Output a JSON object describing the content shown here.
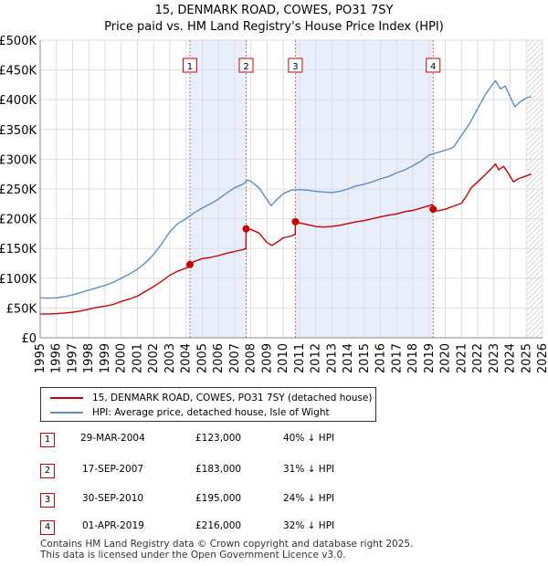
{
  "header": {
    "title": "15, DENMARK ROAD, COWES, PO31 7SY",
    "subtitle": "Price paid vs. HM Land Registry's House Price Index (HPI)"
  },
  "chart_data": {
    "type": "line",
    "title": "15, DENMARK ROAD, COWES, PO31 7SY",
    "subtitle": "Price paid vs. HM Land Registry's House Price Index (HPI)",
    "xlabel": "",
    "ylabel": "",
    "xlim": [
      1995,
      2026
    ],
    "ylim": [
      0,
      500000
    ],
    "grid": true,
    "x_ticks": [
      "1995",
      "1996",
      "1997",
      "1998",
      "1999",
      "2000",
      "2001",
      "2002",
      "2003",
      "2004",
      "2005",
      "2006",
      "2007",
      "2008",
      "2009",
      "2010",
      "2011",
      "2012",
      "2013",
      "2014",
      "2015",
      "2016",
      "2017",
      "2018",
      "2019",
      "2020",
      "2021",
      "2022",
      "2023",
      "2024",
      "2025",
      "2026"
    ],
    "y_ticks": [
      {
        "value": 0,
        "label": "£0"
      },
      {
        "value": 50000,
        "label": "£50K"
      },
      {
        "value": 100000,
        "label": "£100K"
      },
      {
        "value": 150000,
        "label": "£150K"
      },
      {
        "value": 200000,
        "label": "£200K"
      },
      {
        "value": 250000,
        "label": "£250K"
      },
      {
        "value": 300000,
        "label": "£300K"
      },
      {
        "value": 350000,
        "label": "£350K"
      },
      {
        "value": 400000,
        "label": "£400K"
      },
      {
        "value": 450000,
        "label": "£450K"
      },
      {
        "value": 500000,
        "label": "£500K"
      }
    ],
    "shaded_periods": [
      [
        2004.24,
        2007.71
      ],
      [
        2010.75,
        2019.25
      ]
    ],
    "forecast_start": 2025.05,
    "series": [
      {
        "name": "15, DENMARK ROAD, COWES, PO31 7SY (detached house)",
        "color": "#cc0000",
        "points": [
          [
            1995.0,
            40000
          ],
          [
            1995.5,
            40000
          ],
          [
            1996.0,
            40500
          ],
          [
            1996.5,
            41500
          ],
          [
            1997.0,
            43000
          ],
          [
            1997.5,
            45000
          ],
          [
            1998.0,
            48000
          ],
          [
            1998.5,
            51000
          ],
          [
            1999.0,
            53000
          ],
          [
            1999.5,
            56000
          ],
          [
            2000.0,
            61000
          ],
          [
            2000.5,
            65000
          ],
          [
            2001.0,
            70000
          ],
          [
            2001.5,
            78000
          ],
          [
            2002.0,
            86000
          ],
          [
            2002.5,
            95000
          ],
          [
            2003.0,
            105000
          ],
          [
            2003.5,
            112000
          ],
          [
            2003.9,
            116000
          ],
          [
            2004.2,
            119000
          ],
          [
            2004.24,
            123000
          ],
          [
            2004.5,
            128000
          ],
          [
            2005.0,
            133000
          ],
          [
            2005.5,
            135000
          ],
          [
            2006.0,
            138000
          ],
          [
            2006.5,
            142000
          ],
          [
            2007.0,
            145000
          ],
          [
            2007.5,
            148000
          ],
          [
            2007.7,
            150000
          ],
          [
            2007.71,
            183000
          ],
          [
            2008.0,
            182000
          ],
          [
            2008.5,
            176000
          ],
          [
            2009.0,
            160000
          ],
          [
            2009.3,
            155000
          ],
          [
            2009.7,
            162000
          ],
          [
            2010.0,
            168000
          ],
          [
            2010.5,
            171000
          ],
          [
            2010.74,
            174000
          ],
          [
            2010.75,
            195000
          ],
          [
            2011.0,
            193000
          ],
          [
            2011.5,
            190000
          ],
          [
            2012.0,
            187000
          ],
          [
            2012.5,
            186000
          ],
          [
            2013.0,
            187000
          ],
          [
            2013.5,
            189000
          ],
          [
            2014.0,
            192000
          ],
          [
            2014.5,
            195000
          ],
          [
            2015.0,
            197000
          ],
          [
            2015.5,
            200000
          ],
          [
            2016.0,
            203000
          ],
          [
            2016.5,
            206000
          ],
          [
            2017.0,
            208000
          ],
          [
            2017.5,
            212000
          ],
          [
            2018.0,
            214000
          ],
          [
            2018.5,
            218000
          ],
          [
            2019.0,
            222000
          ],
          [
            2019.2,
            224000
          ],
          [
            2019.24,
            216000
          ],
          [
            2019.5,
            213000
          ],
          [
            2020.0,
            216000
          ],
          [
            2020.5,
            221000
          ],
          [
            2021.0,
            226000
          ],
          [
            2021.3,
            238000
          ],
          [
            2021.6,
            252000
          ],
          [
            2022.0,
            262000
          ],
          [
            2022.5,
            275000
          ],
          [
            2022.9,
            286000
          ],
          [
            2023.1,
            292000
          ],
          [
            2023.3,
            282000
          ],
          [
            2023.6,
            288000
          ],
          [
            2023.9,
            276000
          ],
          [
            2024.2,
            262000
          ],
          [
            2024.5,
            267000
          ],
          [
            2024.8,
            270000
          ],
          [
            2025.0,
            272000
          ],
          [
            2025.3,
            275000
          ]
        ]
      },
      {
        "name": "HPI: Average price, detached house, Isle of Wight",
        "color": "#5b8ec9",
        "points": [
          [
            1995.0,
            67000
          ],
          [
            1995.5,
            66500
          ],
          [
            1996.0,
            67000
          ],
          [
            1996.5,
            69000
          ],
          [
            1997.0,
            72000
          ],
          [
            1997.5,
            76000
          ],
          [
            1998.0,
            80000
          ],
          [
            1998.5,
            84000
          ],
          [
            1999.0,
            88000
          ],
          [
            1999.5,
            93000
          ],
          [
            2000.0,
            100000
          ],
          [
            2000.5,
            107000
          ],
          [
            2001.0,
            115000
          ],
          [
            2001.5,
            126000
          ],
          [
            2002.0,
            140000
          ],
          [
            2002.5,
            158000
          ],
          [
            2003.0,
            178000
          ],
          [
            2003.5,
            192000
          ],
          [
            2004.0,
            200000
          ],
          [
            2004.5,
            210000
          ],
          [
            2005.0,
            218000
          ],
          [
            2005.5,
            225000
          ],
          [
            2006.0,
            233000
          ],
          [
            2006.5,
            243000
          ],
          [
            2007.0,
            252000
          ],
          [
            2007.5,
            258000
          ],
          [
            2007.8,
            265000
          ],
          [
            2008.0,
            263000
          ],
          [
            2008.5,
            252000
          ],
          [
            2009.0,
            232000
          ],
          [
            2009.25,
            222000
          ],
          [
            2009.6,
            232000
          ],
          [
            2010.0,
            242000
          ],
          [
            2010.5,
            248000
          ],
          [
            2011.0,
            249000
          ],
          [
            2011.5,
            248000
          ],
          [
            2012.0,
            246000
          ],
          [
            2012.5,
            245000
          ],
          [
            2013.0,
            244000
          ],
          [
            2013.5,
            246000
          ],
          [
            2014.0,
            250000
          ],
          [
            2014.5,
            255000
          ],
          [
            2015.0,
            258000
          ],
          [
            2015.5,
            262000
          ],
          [
            2016.0,
            267000
          ],
          [
            2016.5,
            271000
          ],
          [
            2017.0,
            277000
          ],
          [
            2017.5,
            282000
          ],
          [
            2018.0,
            289000
          ],
          [
            2018.5,
            297000
          ],
          [
            2019.0,
            307000
          ],
          [
            2019.5,
            311000
          ],
          [
            2020.0,
            315000
          ],
          [
            2020.5,
            320000
          ],
          [
            2021.0,
            340000
          ],
          [
            2021.5,
            360000
          ],
          [
            2022.0,
            385000
          ],
          [
            2022.5,
            410000
          ],
          [
            2022.9,
            425000
          ],
          [
            2023.1,
            432000
          ],
          [
            2023.4,
            418000
          ],
          [
            2023.7,
            423000
          ],
          [
            2024.0,
            405000
          ],
          [
            2024.3,
            388000
          ],
          [
            2024.6,
            396000
          ],
          [
            2025.0,
            403000
          ],
          [
            2025.3,
            405000
          ]
        ]
      }
    ],
    "sales": [
      {
        "id": "1",
        "x": 2004.24,
        "y": 123000,
        "date": "29-MAR-2004",
        "price": "£123,000",
        "hpi": "40% ↓ HPI"
      },
      {
        "id": "2",
        "x": 2007.71,
        "y": 183000,
        "date": "17-SEP-2007",
        "price": "£183,000",
        "hpi": "31% ↓ HPI"
      },
      {
        "id": "3",
        "x": 2010.75,
        "y": 195000,
        "date": "30-SEP-2010",
        "price": "£195,000",
        "hpi": "24% ↓ HPI"
      },
      {
        "id": "4",
        "x": 2019.25,
        "y": 216000,
        "date": "01-APR-2019",
        "price": "£216,000",
        "hpi": "32% ↓ HPI"
      }
    ]
  },
  "legend": {
    "items": [
      {
        "label": "15, DENMARK ROAD, COWES, PO31 7SY (detached house)",
        "color": "#cc0000"
      },
      {
        "label": "HPI: Average price, detached house, Isle of Wight",
        "color": "#5b8ec9"
      }
    ]
  },
  "footer": {
    "line1": "Contains HM Land Registry data © Crown copyright and database right 2025.",
    "line2": "This data is licensed under the Open Government Licence v3.0."
  }
}
